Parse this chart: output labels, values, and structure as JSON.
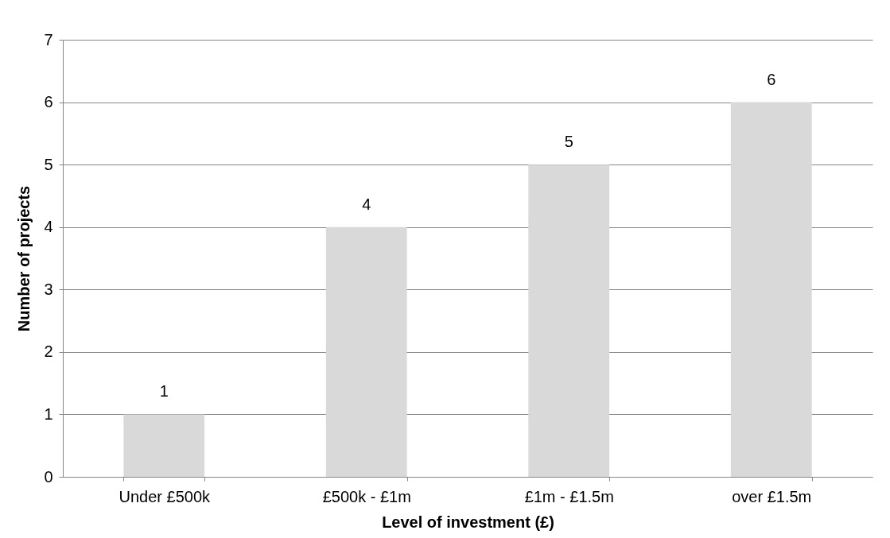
{
  "chart_data": {
    "type": "bar",
    "xlabel": "Level of investment (£)",
    "ylabel": "Number of projects",
    "categories": [
      "Under £500k",
      "£500k - £1m",
      "£1m - £1.5m",
      "over £1.5m"
    ],
    "values": [
      1,
      4,
      5,
      6
    ],
    "color": "#d9d9d9",
    "ylim": [
      0,
      7
    ],
    "yticks": [
      0,
      1,
      2,
      3,
      4,
      5,
      6,
      7
    ],
    "grid": "y",
    "data_labels": true
  }
}
